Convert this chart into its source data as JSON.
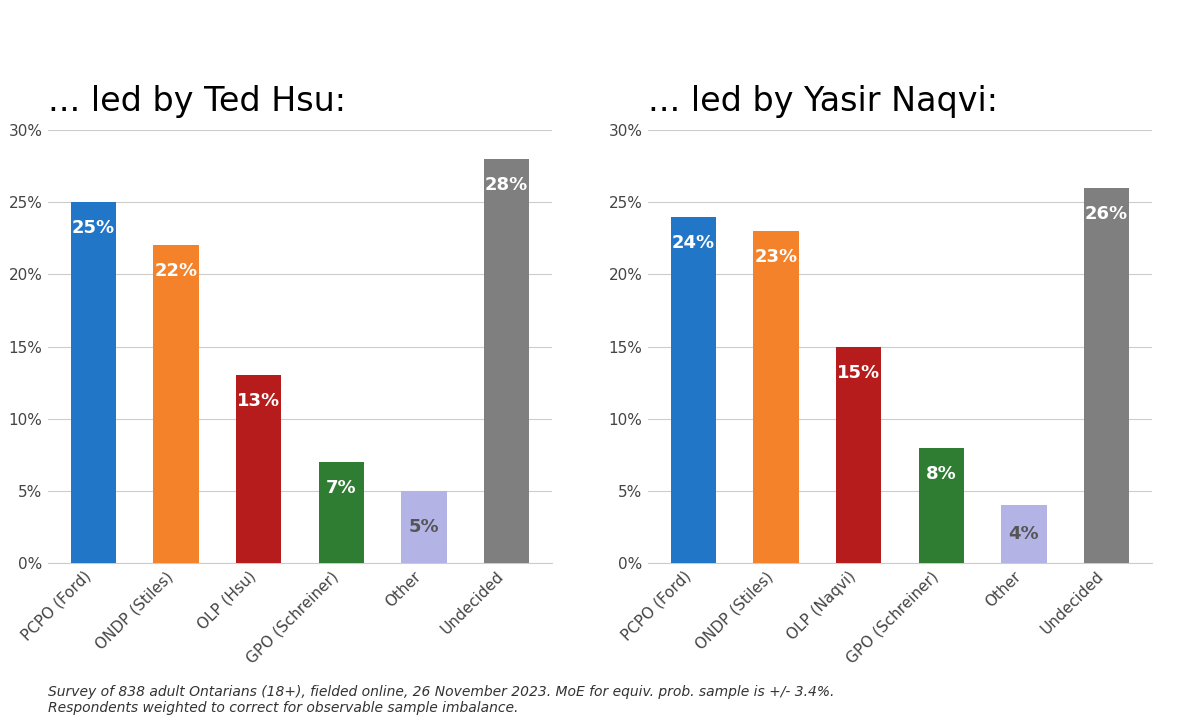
{
  "left_title": "... led by Ted Hsu:",
  "right_title": "... led by Yasir Naqvi:",
  "categories_left": [
    "PCPO (Ford)",
    "ONDP (Stiles)",
    "OLP (Hsu)",
    "GPO (Schreiner)",
    "Other",
    "Undecided"
  ],
  "categories_right": [
    "PCPO (Ford)",
    "ONDP (Stiles)",
    "OLP (Naqvi)",
    "GPO (Schreiner)",
    "Other",
    "Undecided"
  ],
  "values_left": [
    25,
    22,
    13,
    7,
    5,
    28
  ],
  "values_right": [
    24,
    23,
    15,
    8,
    4,
    26
  ],
  "bar_colors": [
    "#2176c7",
    "#f4822a",
    "#b71c1c",
    "#2e7d32",
    "#b3b3e6",
    "#7f7f7f"
  ],
  "label_colors": [
    "white",
    "white",
    "white",
    "white",
    "#555555",
    "white"
  ],
  "ylim": [
    0,
    30
  ],
  "yticks": [
    0,
    5,
    10,
    15,
    20,
    25,
    30
  ],
  "ytick_labels": [
    "0%",
    "5%",
    "10%",
    "15%",
    "20%",
    "25%",
    "30%"
  ],
  "footnote_line1": "Survey of 838 adult Ontarians (18+), fielded online, 26 November 2023. MoE for equiv. prob. sample is +/- 3.4%.",
  "footnote_line2": "Respondents weighted to correct for observable sample imbalance.",
  "bg_color": "#ffffff",
  "grid_color": "#cccccc",
  "title_fontsize": 24,
  "label_fontsize": 13,
  "tick_fontsize": 11,
  "footnote_fontsize": 10,
  "bar_width": 0.55
}
